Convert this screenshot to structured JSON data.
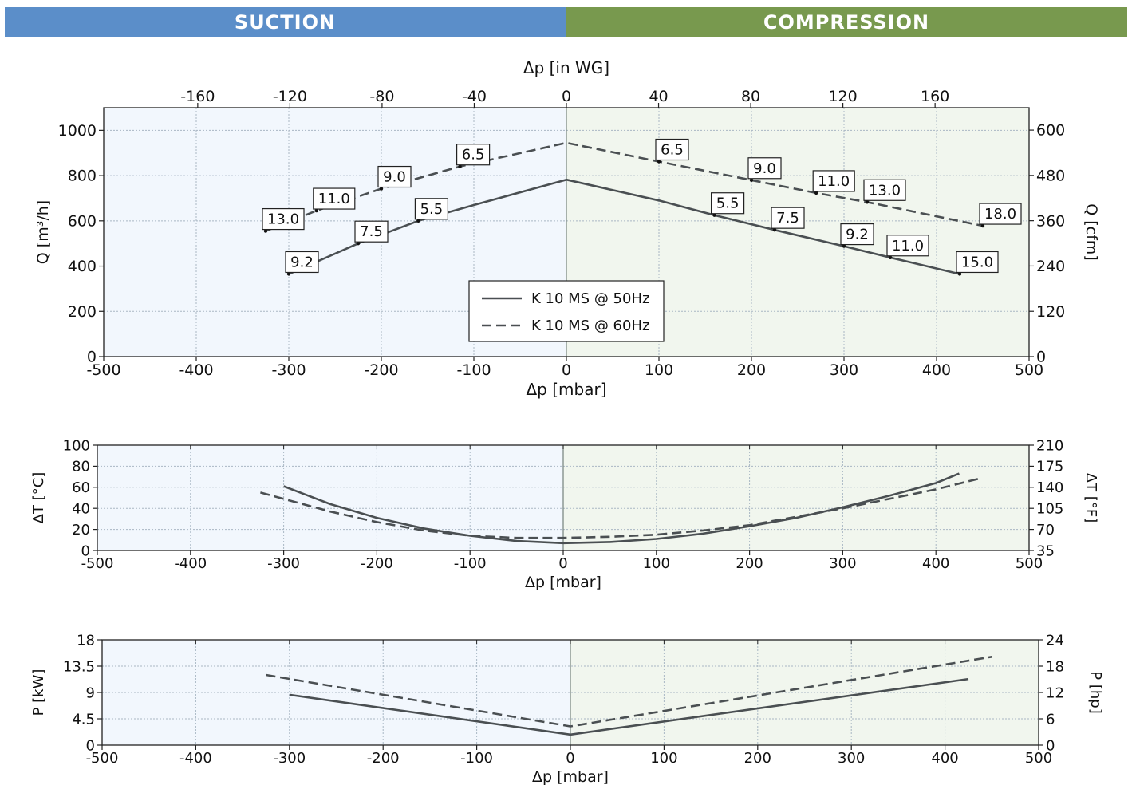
{
  "banners": {
    "suction": "SUCTION",
    "compression": "COMPRESSION"
  },
  "colors": {
    "suction_banner": "#5b8ec9",
    "compression_banner": "#78994e",
    "suction_bg": "#f2f7fd",
    "compression_bg": "#f1f6ee",
    "line": "#4a4f52"
  },
  "chart_data": [
    {
      "type": "line",
      "id": "flow",
      "top_xlabel": "Δp [in WG]",
      "top_ticks": [
        "-160",
        "-120",
        "-80",
        "-40",
        "0",
        "40",
        "80",
        "120",
        "160"
      ],
      "xlabel": "Δp [mbar]",
      "ylabel": "Q [m³/h]",
      "ylabel_right": "Q [cfm]",
      "xlim": [
        -500,
        500
      ],
      "ylim": [
        0,
        1100
      ],
      "xticks": [
        "-500",
        "-400",
        "-300",
        "-200",
        "-100",
        "0",
        "100",
        "200",
        "300",
        "400",
        "500"
      ],
      "yticks": [
        "0",
        "200",
        "400",
        "600",
        "800",
        "1000"
      ],
      "yticks_right": [
        "0",
        "120",
        "240",
        "360",
        "480",
        "600"
      ],
      "grid": true,
      "legend": {
        "position": "center",
        "entries": [
          "K 10 MS @ 50Hz",
          "K 10 MS @ 60Hz"
        ]
      },
      "series": [
        {
          "name": "K 10 MS @ 50Hz",
          "dash": false,
          "x": [
            -300,
            -225,
            -160,
            -100,
            0,
            100,
            160,
            225,
            300,
            350,
            425
          ],
          "y": [
            365,
            500,
            600,
            670,
            782,
            690,
            625,
            560,
            488,
            438,
            365
          ]
        },
        {
          "name": "K 10 MS @ 60Hz",
          "dash": true,
          "x": [
            -325,
            -270,
            -200,
            -115,
            0,
            100,
            200,
            270,
            325,
            450
          ],
          "y": [
            555,
            645,
            742,
            840,
            945,
            862,
            780,
            723,
            683,
            578
          ]
        }
      ],
      "annotations": [
        {
          "label": "9.2",
          "x": -300,
          "y": 365
        },
        {
          "label": "7.5",
          "x": -225,
          "y": 500
        },
        {
          "label": "5.5",
          "x": -160,
          "y": 600
        },
        {
          "label": "13.0",
          "x": -325,
          "y": 555
        },
        {
          "label": "11.0",
          "x": -270,
          "y": 645
        },
        {
          "label": "9.0",
          "x": -200,
          "y": 742
        },
        {
          "label": "6.5",
          "x": -115,
          "y": 840
        },
        {
          "label": "6.5",
          "x": 100,
          "y": 862
        },
        {
          "label": "9.0",
          "x": 200,
          "y": 780
        },
        {
          "label": "11.0",
          "x": 270,
          "y": 723
        },
        {
          "label": "13.0",
          "x": 325,
          "y": 683
        },
        {
          "label": "18.0",
          "x": 450,
          "y": 578
        },
        {
          "label": "5.5",
          "x": 160,
          "y": 625
        },
        {
          "label": "7.5",
          "x": 225,
          "y": 560
        },
        {
          "label": "9.2",
          "x": 300,
          "y": 488
        },
        {
          "label": "11.0",
          "x": 350,
          "y": 438
        },
        {
          "label": "15.0",
          "x": 425,
          "y": 365
        }
      ]
    },
    {
      "type": "line",
      "id": "temperature",
      "xlabel": "Δp [mbar]",
      "ylabel": "ΔT [°C]",
      "ylabel_right": "ΔT [°F]",
      "xlim": [
        -500,
        500
      ],
      "ylim": [
        0,
        100
      ],
      "xticks": [
        "-500",
        "-400",
        "-300",
        "-200",
        "-100",
        "0",
        "100",
        "200",
        "300",
        "400",
        "500"
      ],
      "yticks": [
        "0",
        "20",
        "40",
        "60",
        "80",
        "100"
      ],
      "yticks_right": [
        "35",
        "70",
        "105",
        "140",
        "175",
        "210"
      ],
      "grid": true,
      "series": [
        {
          "name": "K 10 MS @ 50Hz",
          "dash": false,
          "x": [
            -300,
            -250,
            -200,
            -150,
            -100,
            -50,
            0,
            50,
            100,
            150,
            200,
            250,
            300,
            350,
            400,
            425
          ],
          "y": [
            61,
            44,
            31,
            21,
            14,
            9,
            7,
            8,
            11,
            16,
            23,
            31,
            41,
            52,
            64,
            73
          ]
        },
        {
          "name": "K 10 MS @ 60Hz",
          "dash": true,
          "x": [
            -325,
            -250,
            -200,
            -150,
            -100,
            -50,
            0,
            50,
            100,
            150,
            200,
            250,
            300,
            350,
            400,
            450
          ],
          "y": [
            55,
            37,
            27,
            19,
            14,
            12,
            12,
            13,
            15,
            19,
            24,
            32,
            40,
            49,
            58,
            69
          ]
        }
      ]
    },
    {
      "type": "line",
      "id": "power",
      "xlabel": "Δp [mbar]",
      "ylabel": "P [kW]",
      "ylabel_right": "P [hp]",
      "xlim": [
        -500,
        500
      ],
      "ylim": [
        0,
        18
      ],
      "xticks": [
        "-500",
        "-400",
        "-300",
        "-200",
        "-100",
        "0",
        "100",
        "200",
        "300",
        "400",
        "500"
      ],
      "yticks": [
        "0",
        "4.5",
        "9",
        "13.5",
        "18"
      ],
      "yticks_right": [
        "0",
        "6",
        "12",
        "18",
        "24"
      ],
      "grid": true,
      "series": [
        {
          "name": "K 10 MS @ 50Hz",
          "dash": false,
          "x": [
            -300,
            0,
            425
          ],
          "y": [
            8.6,
            1.8,
            11.3
          ]
        },
        {
          "name": "K 10 MS @ 60Hz",
          "dash": true,
          "x": [
            -325,
            0,
            450
          ],
          "y": [
            12.0,
            3.2,
            15.1
          ]
        }
      ]
    }
  ]
}
